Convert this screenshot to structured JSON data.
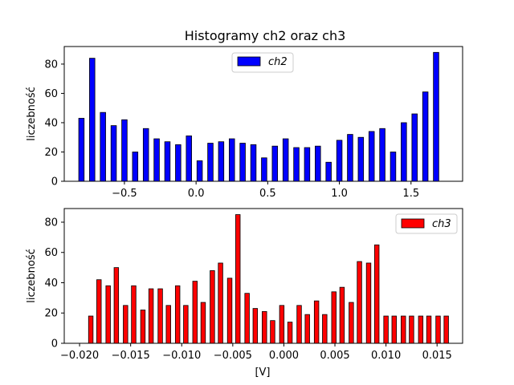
{
  "chart_data": [
    {
      "type": "bar",
      "title": "Histogramy ch2 oraz ch3",
      "xlabel": "",
      "ylabel": "liczebność",
      "xlim": [
        -0.92,
        1.86
      ],
      "ylim": [
        0,
        92
      ],
      "xticks": [
        -0.5,
        0.0,
        0.5,
        1.0,
        1.5
      ],
      "xtick_labels": [
        "−0.5",
        "0.0",
        "0.5",
        "1.0",
        "1.5"
      ],
      "yticks": [
        0,
        20,
        40,
        60,
        80
      ],
      "ytick_labels": [
        "0",
        "20",
        "40",
        "60",
        "80"
      ],
      "bar_width": 0.0375,
      "legend_position": "upper center",
      "series": [
        {
          "name": "ch2",
          "color": "#0000ff",
          "x": [
            -0.8,
            -0.725,
            -0.65,
            -0.575,
            -0.5,
            -0.425,
            -0.35,
            -0.275,
            -0.2,
            -0.125,
            -0.05,
            0.025,
            0.1,
            0.175,
            0.25,
            0.325,
            0.4,
            0.475,
            0.55,
            0.625,
            0.7,
            0.775,
            0.85,
            0.925,
            1.0,
            1.075,
            1.15,
            1.225,
            1.3,
            1.375,
            1.45,
            1.525,
            1.6,
            1.675
          ],
          "values": [
            43,
            84,
            47,
            38,
            42,
            20,
            36,
            29,
            27,
            25,
            31,
            14,
            26,
            27,
            29,
            26,
            25,
            16,
            24,
            29,
            23,
            23,
            24,
            13,
            28,
            32,
            30,
            34,
            36,
            20,
            40,
            46,
            61,
            88
          ]
        }
      ]
    },
    {
      "type": "bar",
      "title": "",
      "xlabel": "[V]",
      "ylabel": "liczebność",
      "xlim": [
        -0.0215,
        0.0175
      ],
      "ylim": [
        0,
        89
      ],
      "xticks": [
        -0.02,
        -0.015,
        -0.01,
        -0.005,
        0.0,
        0.005,
        0.01,
        0.015
      ],
      "xtick_labels": [
        "−0.020",
        "−0.015",
        "−0.010",
        "−0.005",
        "0.000",
        "0.005",
        "0.010",
        "0.015"
      ],
      "yticks": [
        0,
        20,
        40,
        60,
        80
      ],
      "ytick_labels": [
        "0",
        "20",
        "40",
        "60",
        "80"
      ],
      "bar_width": 0.00044,
      "legend_position": "upper right",
      "series": [
        {
          "name": "ch3",
          "color": "#ff0000",
          "x": [
            -0.0189,
            -0.0181,
            -0.0172,
            -0.0164,
            -0.0155,
            -0.0147,
            -0.0138,
            -0.013,
            -0.0121,
            -0.0113,
            -0.0104,
            -0.0096,
            -0.0087,
            -0.0079,
            -0.007,
            -0.0062,
            -0.0053,
            -0.0045,
            -0.0036,
            -0.0028,
            -0.0019,
            -0.0011,
            -0.0002,
            0.0006,
            0.0015,
            0.0023,
            0.0032,
            0.004,
            0.0049,
            0.0057,
            0.0066,
            0.0074,
            0.0083,
            0.0091,
            0.01,
            0.0108,
            0.0117,
            0.0125,
            0.0134,
            0.0142,
            0.0151,
            0.0159
          ],
          "values": [
            18,
            42,
            38,
            50,
            25,
            38,
            22,
            36,
            36,
            25,
            38,
            25,
            41,
            27,
            48,
            53,
            43,
            85,
            33,
            23,
            21,
            15,
            25,
            14,
            25,
            19,
            28,
            19,
            34,
            37,
            27,
            54,
            53,
            65,
            18,
            18,
            18,
            18,
            18,
            18,
            18,
            18
          ]
        }
      ]
    }
  ]
}
